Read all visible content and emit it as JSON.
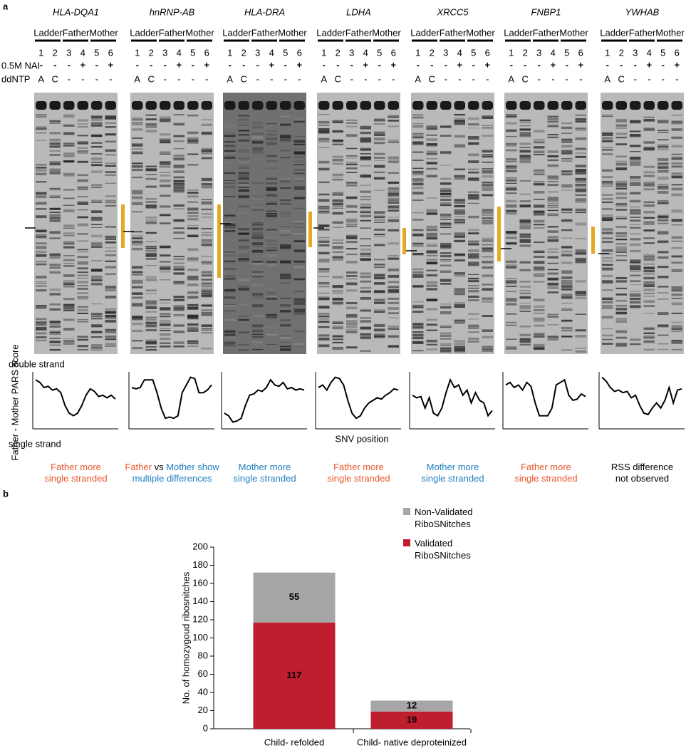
{
  "panel_a": {
    "label": "a",
    "lane_groups": [
      {
        "name": "Ladder",
        "color": "#000000"
      },
      {
        "name": "Father",
        "color": "#e8542a"
      },
      {
        "name": "Mother",
        "color": "#1f7fc1"
      }
    ],
    "lane_numbers": [
      1,
      2,
      3,
      4,
      5,
      6
    ],
    "nai_label": "0.5M NAI",
    "nai": [
      "-",
      "-",
      "-",
      "+",
      "-",
      "+"
    ],
    "ddntp_label": "ddNTP",
    "ddntp": [
      "A",
      "C",
      "-",
      "-",
      "-",
      "-"
    ],
    "double_label": "double strand",
    "single_label": "single strand",
    "score_label": "Father - Mother PARS score",
    "snv_label": "SNV position",
    "pars_ylim": [
      -1,
      1
    ],
    "gels": [
      {
        "gene": "HLA-DQA1",
        "pars": [
          0.8,
          0.7,
          0.5,
          0.55,
          0.4,
          0.45,
          0.3,
          -0.2,
          -0.5,
          -0.6,
          -0.5,
          -0.2,
          0.2,
          0.45,
          0.35,
          0.15,
          0.2,
          0.1,
          0.2,
          0.05
        ],
        "caption": [
          [
            {
              "text": "Father more",
              "color": "#e8542a"
            }
          ],
          [
            {
              "text": "single stranded",
              "color": "#e8542a"
            }
          ]
        ]
      },
      {
        "gene": "hnRNP-AB",
        "pars": [
          0.5,
          0.45,
          0.5,
          0.8,
          0.8,
          0.8,
          0.3,
          -0.3,
          -0.7,
          -0.65,
          -0.7,
          -0.6,
          0.3,
          0.6,
          0.9,
          0.85,
          0.3,
          0.3,
          0.4,
          0.6
        ],
        "caption": [
          [
            {
              "text": "Father",
              "color": "#e8542a"
            },
            {
              "text": "vs",
              "color": "#000000"
            },
            {
              "text": "Mother show",
              "color": "#1f7fc1"
            }
          ],
          [
            {
              "text": "multiple differences",
              "color": "#1f7fc1"
            }
          ]
        ]
      },
      {
        "gene": "HLA-DRA",
        "pars": [
          -0.5,
          -0.6,
          -0.85,
          -0.8,
          -0.7,
          -0.2,
          0.2,
          0.25,
          0.4,
          0.35,
          0.5,
          0.8,
          0.6,
          0.55,
          0.7,
          0.45,
          0.5,
          0.4,
          0.45,
          0.4
        ],
        "caption": [
          [
            {
              "text": "Mother more",
              "color": "#1f7fc1"
            }
          ],
          [
            {
              "text": "single stranded",
              "color": "#1f7fc1"
            }
          ]
        ]
      },
      {
        "gene": "LDHA",
        "pars": [
          0.5,
          0.6,
          0.4,
          0.7,
          0.9,
          0.85,
          0.6,
          0.0,
          -0.5,
          -0.7,
          -0.6,
          -0.3,
          -0.1,
          0.0,
          0.1,
          0.05,
          0.2,
          0.3,
          0.45,
          0.4
        ],
        "caption": [
          [
            {
              "text": "Father more",
              "color": "#e8542a"
            }
          ],
          [
            {
              "text": "single stranded",
              "color": "#e8542a"
            }
          ]
        ]
      },
      {
        "gene": "XRCC5",
        "pars": [
          0.2,
          0.1,
          0.15,
          -0.3,
          0.1,
          -0.5,
          -0.6,
          -0.3,
          0.3,
          0.8,
          0.5,
          0.6,
          0.2,
          0.4,
          -0.1,
          0.3,
          0.0,
          -0.1,
          -0.6,
          -0.4
        ],
        "caption": [
          [
            {
              "text": "Mother more",
              "color": "#1f7fc1"
            }
          ],
          [
            {
              "text": "single stranded",
              "color": "#1f7fc1"
            }
          ]
        ]
      },
      {
        "gene": "FNBP1",
        "pars": [
          0.6,
          0.7,
          0.5,
          0.6,
          0.4,
          0.7,
          0.55,
          -0.1,
          -0.6,
          -0.6,
          -0.6,
          -0.3,
          0.6,
          0.7,
          0.8,
          0.2,
          0.0,
          0.05,
          0.25,
          0.15
        ],
        "caption": [
          [
            {
              "text": "Father more",
              "color": "#e8542a"
            }
          ],
          [
            {
              "text": "single stranded",
              "color": "#e8542a"
            }
          ]
        ]
      },
      {
        "gene": "YWHAB",
        "pars": [
          0.9,
          0.75,
          0.5,
          0.35,
          0.4,
          0.3,
          0.35,
          0.1,
          0.2,
          -0.2,
          -0.5,
          -0.55,
          -0.3,
          -0.1,
          -0.3,
          0.0,
          0.5,
          -0.1,
          0.4,
          0.45
        ],
        "caption": [
          [
            {
              "text": "RSS difference",
              "color": "#000000"
            }
          ],
          [
            {
              "text": "not observed",
              "color": "#000000"
            }
          ]
        ]
      }
    ]
  },
  "chart_data": {
    "type": "stacked_bar",
    "panel_label": "b",
    "y_label": "No. of homozygoud ribosnitches",
    "categories": [
      "Child- refolded",
      "Child- native deproteinized"
    ],
    "series": [
      {
        "name": "Validated RiboSNitches",
        "color": "#be1e2d",
        "values": [
          117,
          19
        ]
      },
      {
        "name": "Non-Validated RiboSNitches",
        "color": "#a6a6a6",
        "values": [
          55,
          12
        ]
      }
    ],
    "ylim": [
      0,
      200
    ],
    "yticks": [
      0,
      20,
      40,
      60,
      80,
      100,
      120,
      140,
      160,
      180,
      200
    ],
    "legend": "top-right"
  }
}
